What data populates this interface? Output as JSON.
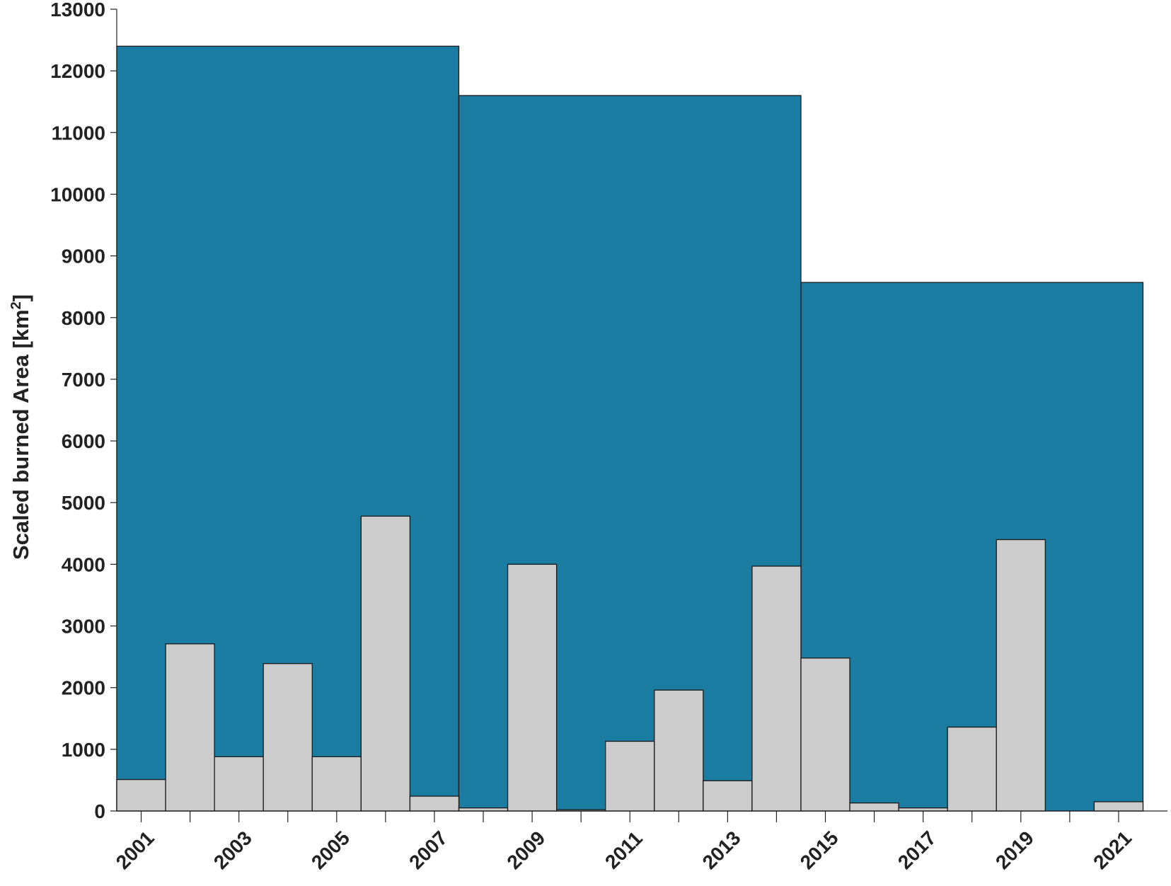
{
  "chart_data": {
    "type": "bar",
    "ylabel": "Scaled burned Area [km",
    "ylabel_superscript": "2",
    "ylabel_suffix": "]",
    "ylim": [
      0,
      13000
    ],
    "yticks": [
      0,
      1000,
      2000,
      3000,
      4000,
      5000,
      6000,
      7000,
      8000,
      9000,
      10000,
      11000,
      12000,
      13000
    ],
    "xlim": [
      2000.5,
      2022.0
    ],
    "xtick_labels": [
      "2001",
      "2003",
      "2005",
      "2007",
      "2009",
      "2011",
      "2013",
      "2015",
      "2017",
      "2019",
      "2021"
    ],
    "grid": false,
    "colors": {
      "period_fill": "#1b7ca1",
      "annual_fill": "#cccccc",
      "edge": "#1a1a1a"
    },
    "series": [
      {
        "kind": "period",
        "bars": [
          {
            "start": 2000.5,
            "end": 2007.5,
            "value": 12400
          },
          {
            "start": 2007.5,
            "end": 2014.5,
            "value": 11600
          },
          {
            "start": 2014.5,
            "end": 2021.5,
            "value": 8570
          }
        ]
      },
      {
        "kind": "annual",
        "categories": [
          2001,
          2002,
          2003,
          2004,
          2005,
          2006,
          2007,
          2008,
          2009,
          2010,
          2011,
          2012,
          2013,
          2014,
          2015,
          2016,
          2017,
          2018,
          2019,
          2020,
          2021
        ],
        "values": [
          510,
          2710,
          880,
          2390,
          880,
          4780,
          240,
          50,
          4000,
          20,
          1130,
          1960,
          490,
          3970,
          2480,
          130,
          50,
          1360,
          4400,
          0,
          150
        ]
      }
    ]
  }
}
